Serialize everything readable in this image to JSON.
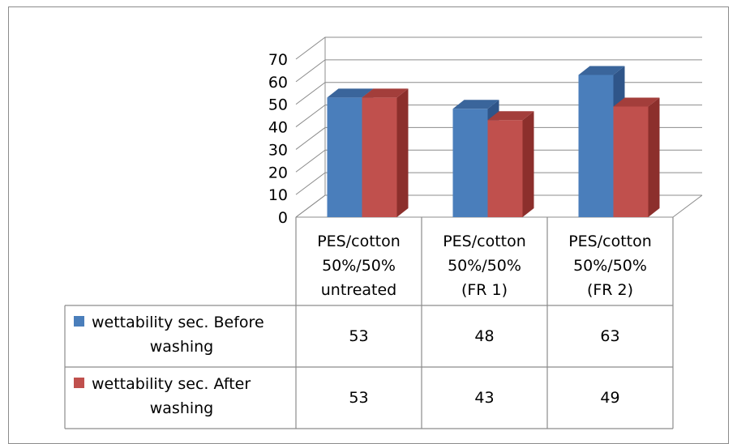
{
  "chart_data": {
    "type": "bar",
    "title": "",
    "xlabel": "",
    "ylabel": "",
    "ylim": [
      0,
      70
    ],
    "yticks": [
      0,
      10,
      20,
      30,
      40,
      50,
      60,
      70
    ],
    "grid": true,
    "three_d": true,
    "legend": "data-table",
    "categories": [
      [
        "PES/cotton",
        "50%/50%",
        "untreated"
      ],
      [
        "PES/cotton",
        "50%/50%",
        "(FR 1)"
      ],
      [
        "PES/cotton",
        "50%/50%",
        "(FR 2)"
      ]
    ],
    "series": [
      {
        "name": "wettability sec. Before washing",
        "name_lines": [
          "wettability sec. Before",
          "washing"
        ],
        "color": "#4a7ebb",
        "top_color": "#3a659b",
        "side_color": "#2f5589",
        "values": [
          53,
          48,
          63
        ]
      },
      {
        "name": "wettability sec. After washing",
        "name_lines": [
          "wettability sec. After",
          "washing"
        ],
        "color": "#c0504d",
        "top_color": "#a33e3b",
        "side_color": "#8c2f2c",
        "values": [
          53,
          43,
          49
        ]
      }
    ]
  }
}
